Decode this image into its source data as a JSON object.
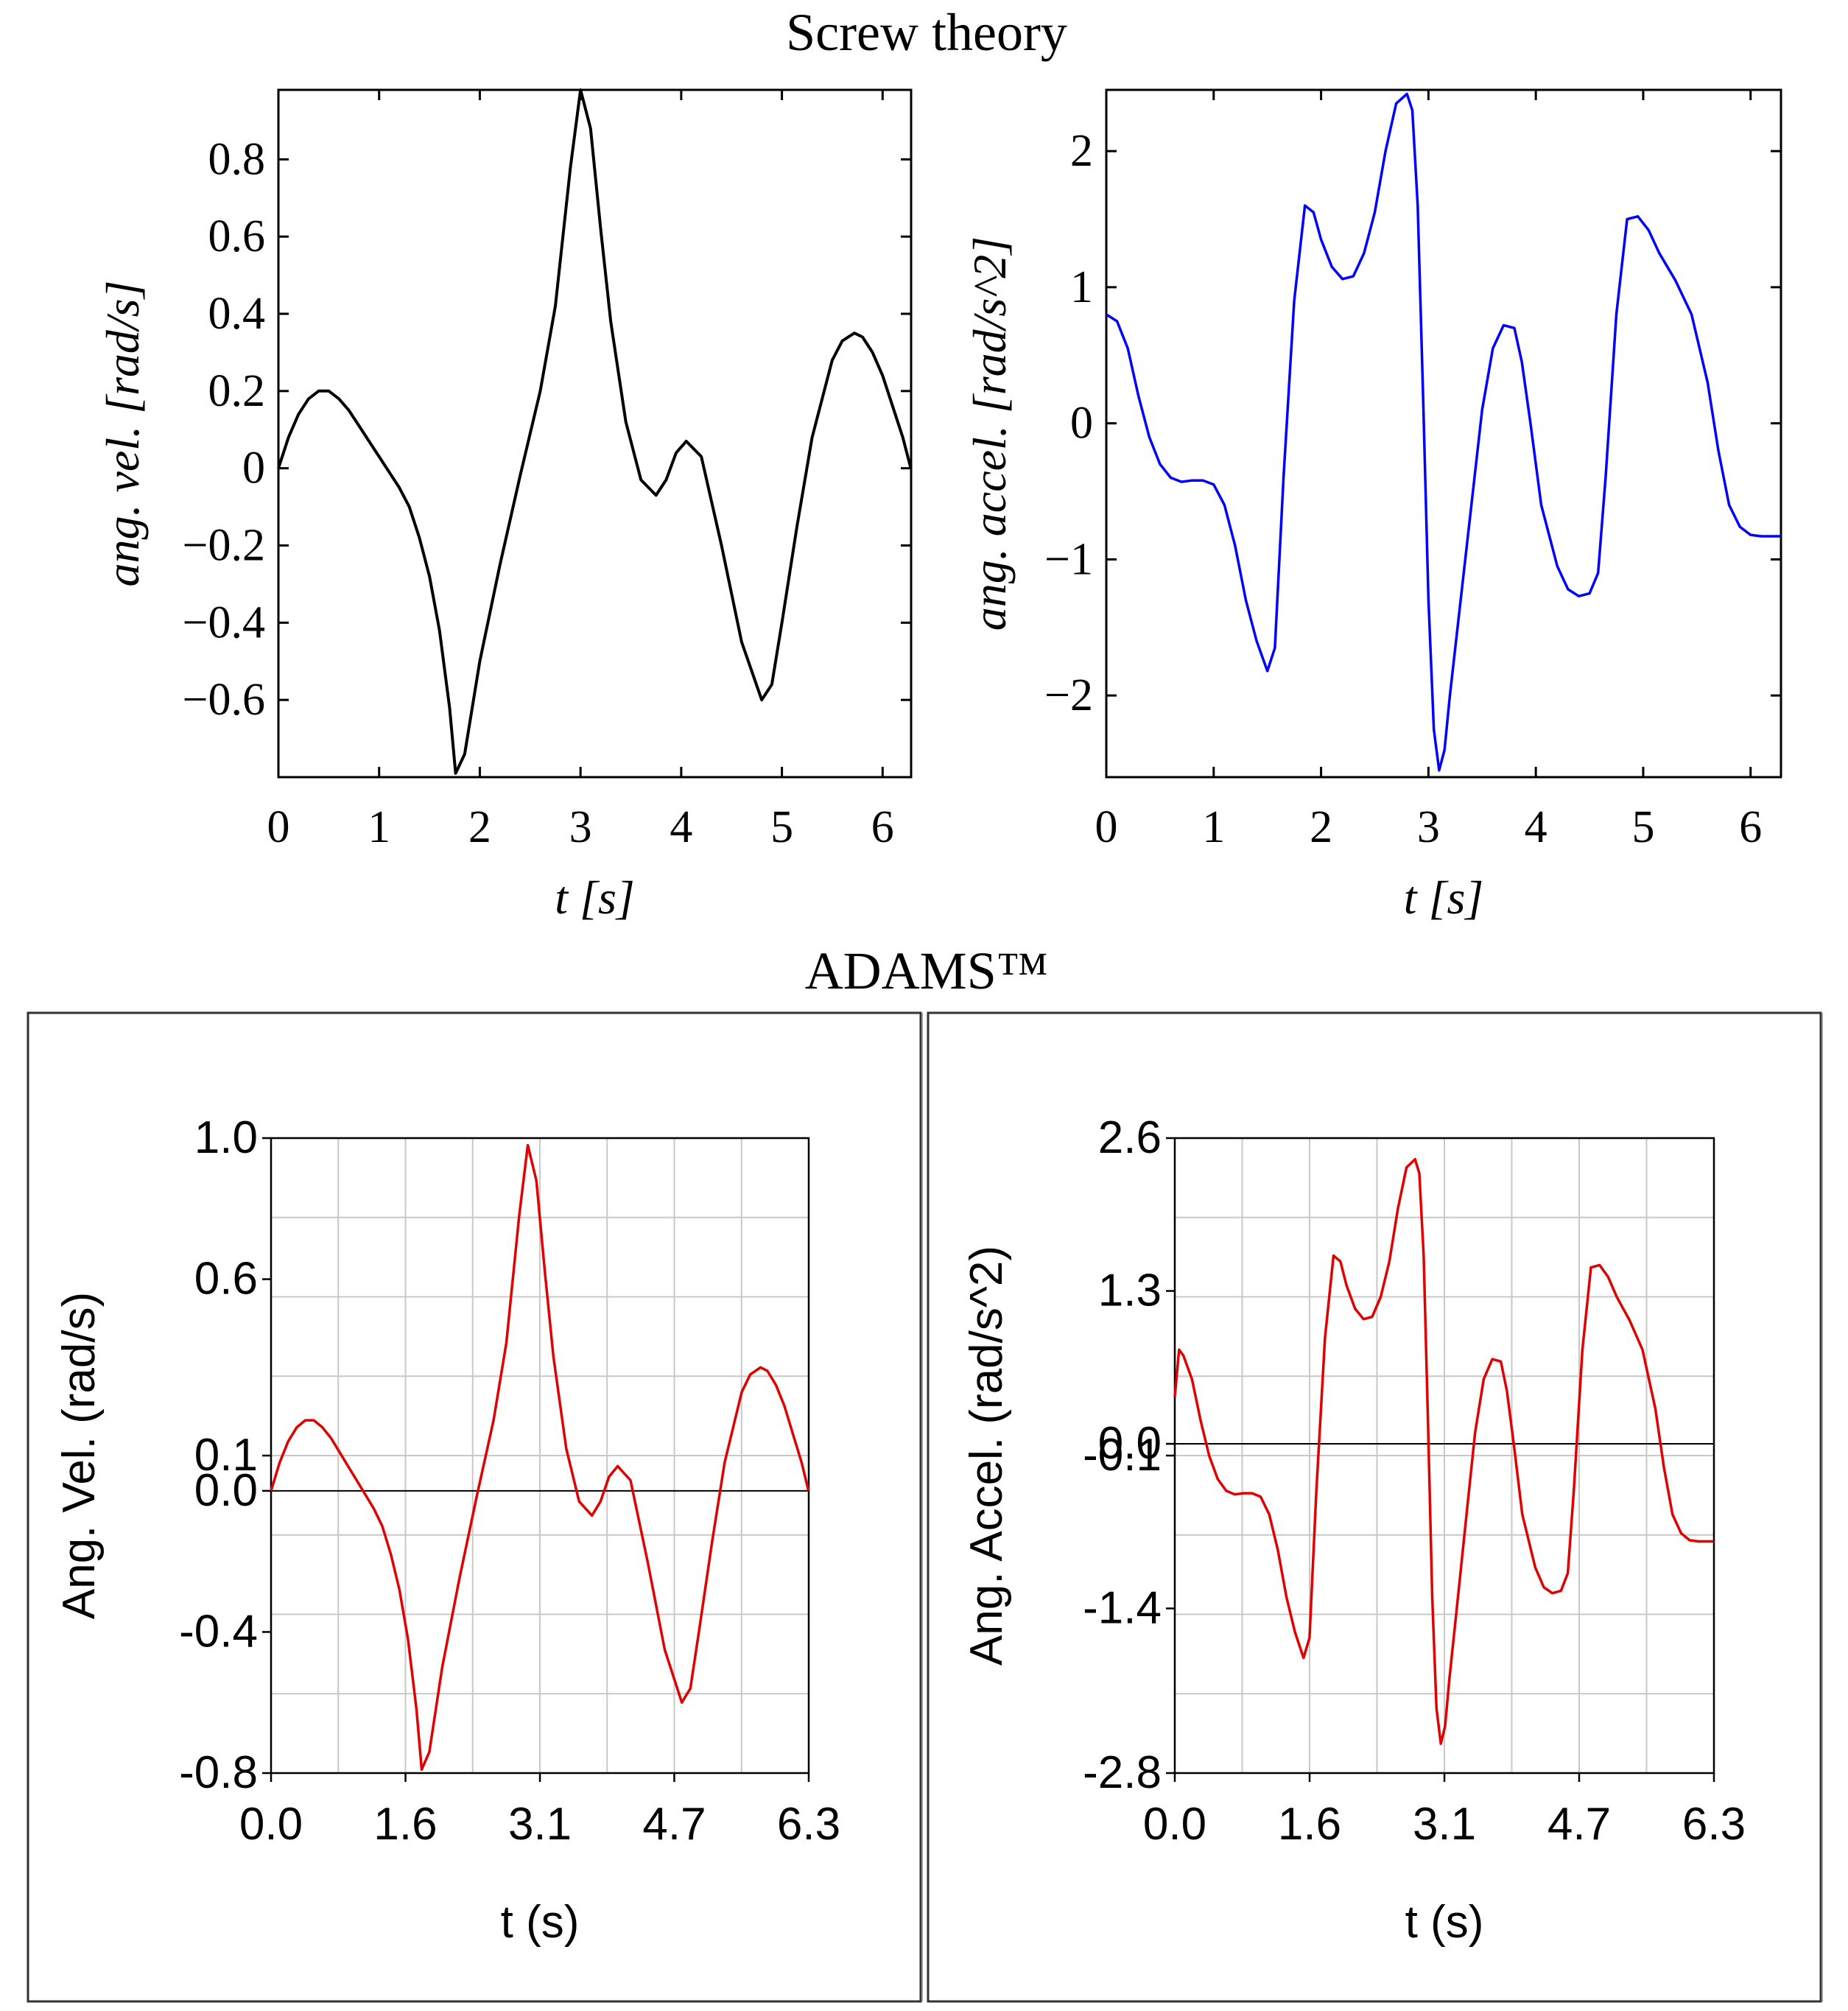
{
  "screw_title": "Screw theory",
  "adams_title": "ADAMS™",
  "chart_data": [
    {
      "type": "line",
      "group": "Screw theory",
      "xlabel": "t [s]",
      "ylabel": "ang. vel. [rad/s]",
      "color": "#000000",
      "xlim": [
        0,
        6.283
      ],
      "ylim": [
        -0.8,
        0.98
      ],
      "xticks": [
        0,
        1,
        2,
        3,
        4,
        5,
        6
      ],
      "xtick_labels": [
        "0",
        "1",
        "2",
        "3",
        "4",
        "5",
        "6"
      ],
      "yticks": [
        0.8,
        0.6,
        0.4,
        0.2,
        0,
        -0.2,
        -0.4,
        -0.6
      ],
      "ytick_labels": [
        "0.8",
        "0.6",
        "0.4",
        "0.2",
        "0",
        "−0.2",
        "−0.4",
        "−0.6"
      ],
      "x": [
        0,
        0.1,
        0.2,
        0.3,
        0.4,
        0.5,
        0.6,
        0.7,
        0.8,
        1.0,
        1.2,
        1.3,
        1.4,
        1.5,
        1.6,
        1.7,
        1.76,
        1.85,
        2.0,
        2.2,
        2.4,
        2.6,
        2.75,
        2.9,
        3.0,
        3.1,
        3.2,
        3.3,
        3.45,
        3.6,
        3.75,
        3.85,
        3.95,
        4.05,
        4.2,
        4.4,
        4.6,
        4.8,
        4.9,
        5.0,
        5.15,
        5.3,
        5.5,
        5.6,
        5.72,
        5.8,
        5.9,
        6.0,
        6.1,
        6.2,
        6.28
      ],
      "y": [
        0,
        0.08,
        0.14,
        0.18,
        0.2,
        0.2,
        0.18,
        0.15,
        0.11,
        0.03,
        -0.05,
        -0.1,
        -0.18,
        -0.28,
        -0.42,
        -0.62,
        -0.79,
        -0.74,
        -0.5,
        -0.25,
        -0.02,
        0.2,
        0.42,
        0.78,
        0.98,
        0.88,
        0.62,
        0.38,
        0.12,
        -0.03,
        -0.07,
        -0.03,
        0.04,
        0.07,
        0.03,
        -0.2,
        -0.45,
        -0.6,
        -0.56,
        -0.4,
        -0.15,
        0.08,
        0.28,
        0.33,
        0.35,
        0.34,
        0.3,
        0.24,
        0.16,
        0.08,
        0
      ]
    },
    {
      "type": "line",
      "group": "Screw theory",
      "xlabel": "t [s]",
      "ylabel": "ang. accel. [rad/s^2]",
      "color": "#0000ff",
      "xlim": [
        0,
        6.283
      ],
      "ylim": [
        -2.6,
        2.45
      ],
      "xticks": [
        0,
        1,
        2,
        3,
        4,
        5,
        6
      ],
      "xtick_labels": [
        "0",
        "1",
        "2",
        "3",
        "4",
        "5",
        "6"
      ],
      "yticks": [
        2,
        1,
        0,
        -1,
        -2
      ],
      "ytick_labels": [
        "2",
        "1",
        "0",
        "−1",
        "−2"
      ],
      "x": [
        0,
        0.1,
        0.2,
        0.3,
        0.4,
        0.5,
        0.6,
        0.7,
        0.8,
        0.9,
        1.0,
        1.1,
        1.2,
        1.3,
        1.4,
        1.5,
        1.57,
        1.65,
        1.75,
        1.85,
        1.93,
        2.0,
        2.1,
        2.2,
        2.3,
        2.4,
        2.5,
        2.6,
        2.7,
        2.8,
        2.85,
        2.9,
        2.95,
        3.0,
        3.05,
        3.1,
        3.15,
        3.2,
        3.3,
        3.4,
        3.5,
        3.6,
        3.7,
        3.8,
        3.87,
        3.95,
        4.05,
        4.2,
        4.3,
        4.4,
        4.5,
        4.58,
        4.65,
        4.75,
        4.85,
        4.95,
        5.05,
        5.15,
        5.3,
        5.45,
        5.6,
        5.7,
        5.8,
        5.9,
        6.0,
        6.1,
        6.2,
        6.28
      ],
      "y": [
        0.8,
        0.75,
        0.55,
        0.2,
        -0.1,
        -0.3,
        -0.4,
        -0.43,
        -0.42,
        -0.42,
        -0.45,
        -0.6,
        -0.9,
        -1.3,
        -1.6,
        -1.82,
        -1.65,
        -0.4,
        0.9,
        1.6,
        1.55,
        1.35,
        1.15,
        1.06,
        1.08,
        1.25,
        1.55,
        2.0,
        2.35,
        2.42,
        2.3,
        1.6,
        0.2,
        -1.3,
        -2.25,
        -2.55,
        -2.4,
        -2.0,
        -1.3,
        -0.6,
        0.1,
        0.55,
        0.72,
        0.7,
        0.45,
        0,
        -0.6,
        -1.05,
        -1.22,
        -1.27,
        -1.25,
        -1.1,
        -0.4,
        0.8,
        1.5,
        1.52,
        1.42,
        1.25,
        1.05,
        0.8,
        0.3,
        -0.2,
        -0.6,
        -0.76,
        -0.82,
        -0.83,
        -0.83,
        -0.83
      ]
    },
    {
      "type": "line",
      "group": "ADAMS™",
      "xlabel": "t (s)",
      "ylabel": "Ang. Vel. (rad/s)",
      "color": "#e00000",
      "xlim": [
        0,
        6.283
      ],
      "ylim": [
        -0.8,
        1.0
      ],
      "xticks": [
        0,
        1.571,
        3.142,
        4.712,
        6.283
      ],
      "xtick_labels": [
        "0.0",
        "1.6",
        "3.1",
        "4.7",
        "6.3"
      ],
      "yticks": [
        1.0,
        0.6,
        0.1,
        0.0,
        -0.4,
        -0.8
      ],
      "ytick_labels": [
        "1.0",
        "0.6",
        "0.1",
        "0.0",
        "-0.4",
        "-0.8"
      ],
      "x": [
        0,
        0.1,
        0.2,
        0.3,
        0.4,
        0.5,
        0.6,
        0.7,
        0.8,
        1.0,
        1.2,
        1.3,
        1.4,
        1.5,
        1.6,
        1.7,
        1.76,
        1.85,
        2.0,
        2.2,
        2.4,
        2.6,
        2.75,
        2.9,
        3.0,
        3.1,
        3.2,
        3.3,
        3.45,
        3.6,
        3.75,
        3.85,
        3.95,
        4.05,
        4.2,
        4.4,
        4.6,
        4.8,
        4.9,
        5.0,
        5.15,
        5.3,
        5.5,
        5.6,
        5.72,
        5.8,
        5.9,
        6.0,
        6.1,
        6.2,
        6.28
      ],
      "y": [
        0,
        0.08,
        0.14,
        0.18,
        0.2,
        0.2,
        0.18,
        0.15,
        0.11,
        0.03,
        -0.05,
        -0.1,
        -0.18,
        -0.28,
        -0.42,
        -0.62,
        -0.79,
        -0.74,
        -0.5,
        -0.25,
        -0.02,
        0.2,
        0.42,
        0.78,
        0.98,
        0.88,
        0.62,
        0.38,
        0.12,
        -0.03,
        -0.07,
        -0.03,
        0.04,
        0.07,
        0.03,
        -0.2,
        -0.45,
        -0.6,
        -0.56,
        -0.4,
        -0.15,
        0.08,
        0.28,
        0.33,
        0.35,
        0.34,
        0.3,
        0.24,
        0.16,
        0.08,
        0
      ]
    },
    {
      "type": "line",
      "group": "ADAMS™",
      "xlabel": "t (s)",
      "ylabel": "Ang. Accel. (rad/s^2)",
      "color": "#e00000",
      "xlim": [
        0,
        6.283
      ],
      "ylim": [
        -2.8,
        2.6
      ],
      "xticks": [
        0,
        1.571,
        3.142,
        4.712,
        6.283
      ],
      "xtick_labels": [
        "0.0",
        "1.6",
        "3.1",
        "4.7",
        "6.3"
      ],
      "yticks": [
        2.6,
        1.3,
        0.0,
        -0.1,
        -1.4,
        -2.8
      ],
      "ytick_labels": [
        "2.6",
        "1.3",
        "0.0",
        "-0.1",
        "-1.4",
        "-2.8"
      ],
      "x": [
        0,
        0.05,
        0.1,
        0.2,
        0.3,
        0.4,
        0.5,
        0.6,
        0.7,
        0.8,
        0.9,
        1.0,
        1.1,
        1.2,
        1.3,
        1.4,
        1.5,
        1.57,
        1.65,
        1.75,
        1.85,
        1.93,
        2.0,
        2.1,
        2.2,
        2.3,
        2.4,
        2.5,
        2.6,
        2.7,
        2.8,
        2.85,
        2.9,
        2.95,
        3.0,
        3.05,
        3.1,
        3.15,
        3.2,
        3.3,
        3.4,
        3.5,
        3.6,
        3.7,
        3.8,
        3.87,
        3.95,
        4.05,
        4.2,
        4.3,
        4.4,
        4.5,
        4.58,
        4.65,
        4.75,
        4.85,
        4.95,
        5.05,
        5.15,
        5.3,
        5.45,
        5.6,
        5.7,
        5.8,
        5.9,
        6.0,
        6.1,
        6.2,
        6.28
      ],
      "y": [
        0.4,
        0.8,
        0.75,
        0.55,
        0.2,
        -0.1,
        -0.3,
        -0.4,
        -0.43,
        -0.42,
        -0.42,
        -0.45,
        -0.6,
        -0.9,
        -1.3,
        -1.6,
        -1.82,
        -1.65,
        -0.4,
        0.9,
        1.6,
        1.55,
        1.35,
        1.15,
        1.06,
        1.08,
        1.25,
        1.55,
        2.0,
        2.35,
        2.42,
        2.3,
        1.6,
        0.2,
        -1.3,
        -2.25,
        -2.55,
        -2.4,
        -2.0,
        -1.3,
        -0.6,
        0.1,
        0.55,
        0.72,
        0.7,
        0.45,
        0,
        -0.6,
        -1.05,
        -1.22,
        -1.27,
        -1.25,
        -1.1,
        -0.4,
        0.8,
        1.5,
        1.52,
        1.42,
        1.25,
        1.05,
        0.8,
        0.3,
        -0.2,
        -0.6,
        -0.76,
        -0.82,
        -0.83,
        -0.83,
        -0.83
      ]
    }
  ]
}
